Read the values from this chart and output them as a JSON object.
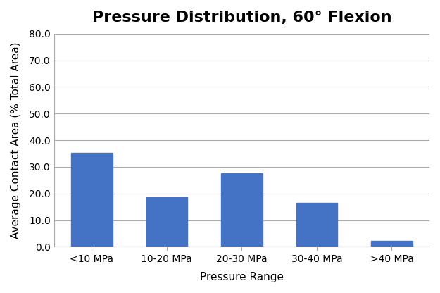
{
  "title": "Pressure Distribution, 60° Flexion",
  "categories": [
    "<10 MPa",
    "10-20 MPa",
    "20-30 MPa",
    "30-40 MPa",
    ">40 MPa"
  ],
  "values": [
    35.3,
    18.7,
    27.5,
    16.5,
    2.2
  ],
  "bar_color": "#4472C4",
  "xlabel": "Pressure Range",
  "ylabel": "Average Contact Area (% Total Area)",
  "ylim": [
    0,
    80
  ],
  "yticks": [
    0.0,
    10.0,
    20.0,
    30.0,
    40.0,
    50.0,
    60.0,
    70.0,
    80.0
  ],
  "title_fontsize": 16,
  "axis_label_fontsize": 11,
  "tick_fontsize": 10,
  "bar_width": 0.55,
  "grid_color": "#AAAAAA",
  "background_color": "#FFFFFF",
  "border_color": "#AAAAAA"
}
